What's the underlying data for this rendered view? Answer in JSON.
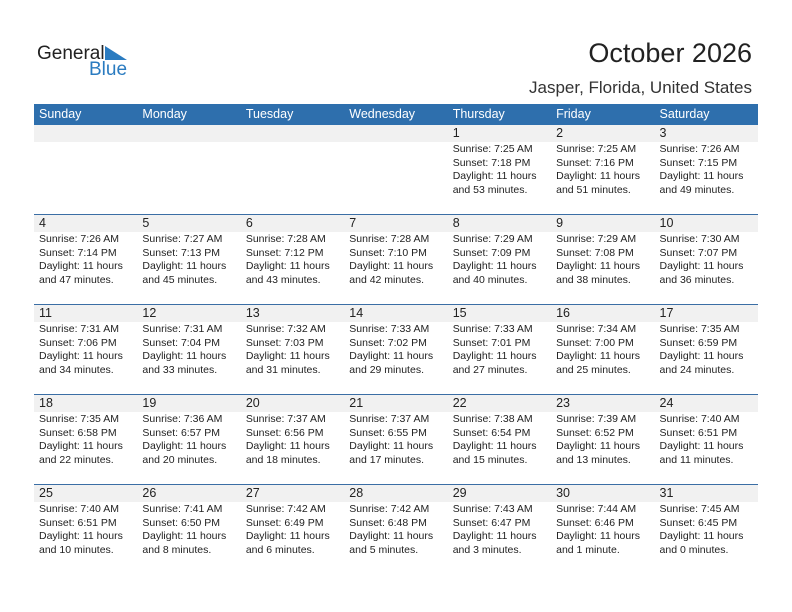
{
  "logo": {
    "general": "General",
    "blue": "Blue"
  },
  "title": "October 2026",
  "location": "Jasper, Florida, United States",
  "colors": {
    "header": "#2e6fad",
    "logo_blue": "#2a7bc0"
  },
  "weekdays": [
    "Sunday",
    "Monday",
    "Tuesday",
    "Wednesday",
    "Thursday",
    "Friday",
    "Saturday"
  ],
  "weeks": [
    [
      null,
      null,
      null,
      null,
      {
        "day": "1",
        "sunrise": "Sunrise: 7:25 AM",
        "sunset": "Sunset: 7:18 PM",
        "daylight1": "Daylight: 11 hours",
        "daylight2": "and 53 minutes."
      },
      {
        "day": "2",
        "sunrise": "Sunrise: 7:25 AM",
        "sunset": "Sunset: 7:16 PM",
        "daylight1": "Daylight: 11 hours",
        "daylight2": "and 51 minutes."
      },
      {
        "day": "3",
        "sunrise": "Sunrise: 7:26 AM",
        "sunset": "Sunset: 7:15 PM",
        "daylight1": "Daylight: 11 hours",
        "daylight2": "and 49 minutes."
      }
    ],
    [
      {
        "day": "4",
        "sunrise": "Sunrise: 7:26 AM",
        "sunset": "Sunset: 7:14 PM",
        "daylight1": "Daylight: 11 hours",
        "daylight2": "and 47 minutes."
      },
      {
        "day": "5",
        "sunrise": "Sunrise: 7:27 AM",
        "sunset": "Sunset: 7:13 PM",
        "daylight1": "Daylight: 11 hours",
        "daylight2": "and 45 minutes."
      },
      {
        "day": "6",
        "sunrise": "Sunrise: 7:28 AM",
        "sunset": "Sunset: 7:12 PM",
        "daylight1": "Daylight: 11 hours",
        "daylight2": "and 43 minutes."
      },
      {
        "day": "7",
        "sunrise": "Sunrise: 7:28 AM",
        "sunset": "Sunset: 7:10 PM",
        "daylight1": "Daylight: 11 hours",
        "daylight2": "and 42 minutes."
      },
      {
        "day": "8",
        "sunrise": "Sunrise: 7:29 AM",
        "sunset": "Sunset: 7:09 PM",
        "daylight1": "Daylight: 11 hours",
        "daylight2": "and 40 minutes."
      },
      {
        "day": "9",
        "sunrise": "Sunrise: 7:29 AM",
        "sunset": "Sunset: 7:08 PM",
        "daylight1": "Daylight: 11 hours",
        "daylight2": "and 38 minutes."
      },
      {
        "day": "10",
        "sunrise": "Sunrise: 7:30 AM",
        "sunset": "Sunset: 7:07 PM",
        "daylight1": "Daylight: 11 hours",
        "daylight2": "and 36 minutes."
      }
    ],
    [
      {
        "day": "11",
        "sunrise": "Sunrise: 7:31 AM",
        "sunset": "Sunset: 7:06 PM",
        "daylight1": "Daylight: 11 hours",
        "daylight2": "and 34 minutes."
      },
      {
        "day": "12",
        "sunrise": "Sunrise: 7:31 AM",
        "sunset": "Sunset: 7:04 PM",
        "daylight1": "Daylight: 11 hours",
        "daylight2": "and 33 minutes."
      },
      {
        "day": "13",
        "sunrise": "Sunrise: 7:32 AM",
        "sunset": "Sunset: 7:03 PM",
        "daylight1": "Daylight: 11 hours",
        "daylight2": "and 31 minutes."
      },
      {
        "day": "14",
        "sunrise": "Sunrise: 7:33 AM",
        "sunset": "Sunset: 7:02 PM",
        "daylight1": "Daylight: 11 hours",
        "daylight2": "and 29 minutes."
      },
      {
        "day": "15",
        "sunrise": "Sunrise: 7:33 AM",
        "sunset": "Sunset: 7:01 PM",
        "daylight1": "Daylight: 11 hours",
        "daylight2": "and 27 minutes."
      },
      {
        "day": "16",
        "sunrise": "Sunrise: 7:34 AM",
        "sunset": "Sunset: 7:00 PM",
        "daylight1": "Daylight: 11 hours",
        "daylight2": "and 25 minutes."
      },
      {
        "day": "17",
        "sunrise": "Sunrise: 7:35 AM",
        "sunset": "Sunset: 6:59 PM",
        "daylight1": "Daylight: 11 hours",
        "daylight2": "and 24 minutes."
      }
    ],
    [
      {
        "day": "18",
        "sunrise": "Sunrise: 7:35 AM",
        "sunset": "Sunset: 6:58 PM",
        "daylight1": "Daylight: 11 hours",
        "daylight2": "and 22 minutes."
      },
      {
        "day": "19",
        "sunrise": "Sunrise: 7:36 AM",
        "sunset": "Sunset: 6:57 PM",
        "daylight1": "Daylight: 11 hours",
        "daylight2": "and 20 minutes."
      },
      {
        "day": "20",
        "sunrise": "Sunrise: 7:37 AM",
        "sunset": "Sunset: 6:56 PM",
        "daylight1": "Daylight: 11 hours",
        "daylight2": "and 18 minutes."
      },
      {
        "day": "21",
        "sunrise": "Sunrise: 7:37 AM",
        "sunset": "Sunset: 6:55 PM",
        "daylight1": "Daylight: 11 hours",
        "daylight2": "and 17 minutes."
      },
      {
        "day": "22",
        "sunrise": "Sunrise: 7:38 AM",
        "sunset": "Sunset: 6:54 PM",
        "daylight1": "Daylight: 11 hours",
        "daylight2": "and 15 minutes."
      },
      {
        "day": "23",
        "sunrise": "Sunrise: 7:39 AM",
        "sunset": "Sunset: 6:52 PM",
        "daylight1": "Daylight: 11 hours",
        "daylight2": "and 13 minutes."
      },
      {
        "day": "24",
        "sunrise": "Sunrise: 7:40 AM",
        "sunset": "Sunset: 6:51 PM",
        "daylight1": "Daylight: 11 hours",
        "daylight2": "and 11 minutes."
      }
    ],
    [
      {
        "day": "25",
        "sunrise": "Sunrise: 7:40 AM",
        "sunset": "Sunset: 6:51 PM",
        "daylight1": "Daylight: 11 hours",
        "daylight2": "and 10 minutes."
      },
      {
        "day": "26",
        "sunrise": "Sunrise: 7:41 AM",
        "sunset": "Sunset: 6:50 PM",
        "daylight1": "Daylight: 11 hours",
        "daylight2": "and 8 minutes."
      },
      {
        "day": "27",
        "sunrise": "Sunrise: 7:42 AM",
        "sunset": "Sunset: 6:49 PM",
        "daylight1": "Daylight: 11 hours",
        "daylight2": "and 6 minutes."
      },
      {
        "day": "28",
        "sunrise": "Sunrise: 7:42 AM",
        "sunset": "Sunset: 6:48 PM",
        "daylight1": "Daylight: 11 hours",
        "daylight2": "and 5 minutes."
      },
      {
        "day": "29",
        "sunrise": "Sunrise: 7:43 AM",
        "sunset": "Sunset: 6:47 PM",
        "daylight1": "Daylight: 11 hours",
        "daylight2": "and 3 minutes."
      },
      {
        "day": "30",
        "sunrise": "Sunrise: 7:44 AM",
        "sunset": "Sunset: 6:46 PM",
        "daylight1": "Daylight: 11 hours",
        "daylight2": "and 1 minute."
      },
      {
        "day": "31",
        "sunrise": "Sunrise: 7:45 AM",
        "sunset": "Sunset: 6:45 PM",
        "daylight1": "Daylight: 11 hours",
        "daylight2": "and 0 minutes."
      }
    ]
  ]
}
